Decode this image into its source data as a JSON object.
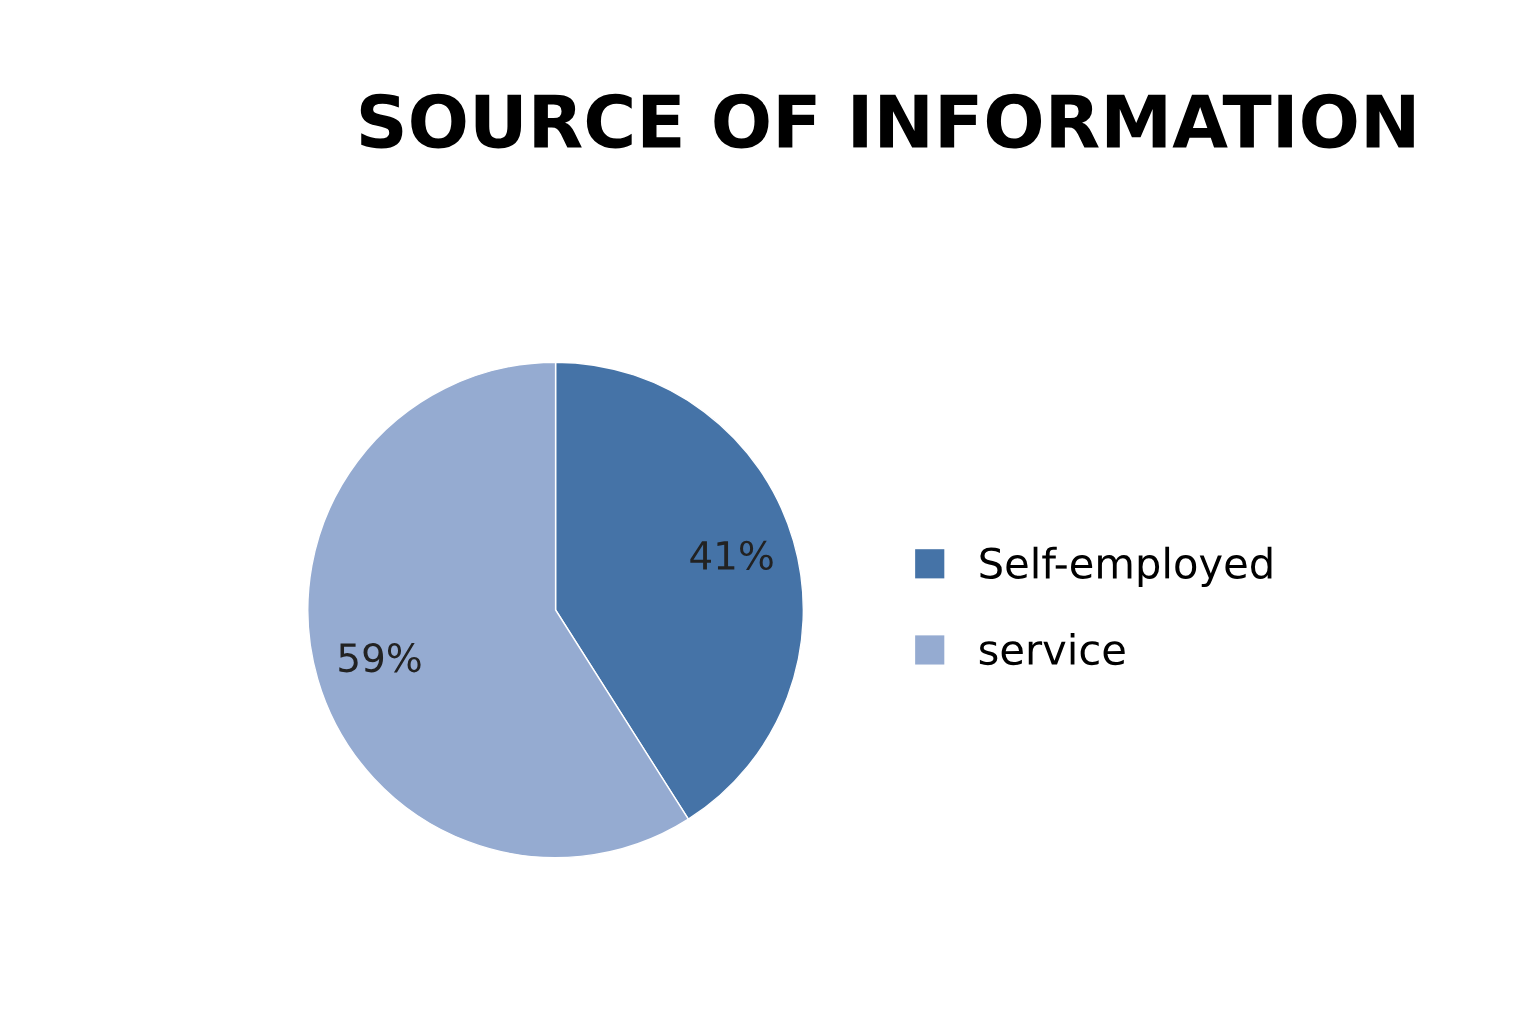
{
  "chart_data": {
    "type": "pie",
    "title": "SOURCE OF INFORMATION",
    "categories": [
      "Self-employed",
      "service"
    ],
    "values": [
      41,
      59
    ],
    "colors": [
      "#4573a7",
      "#95abd1"
    ],
    "value_labels": [
      "41%",
      "59%"
    ],
    "legend": "right"
  }
}
